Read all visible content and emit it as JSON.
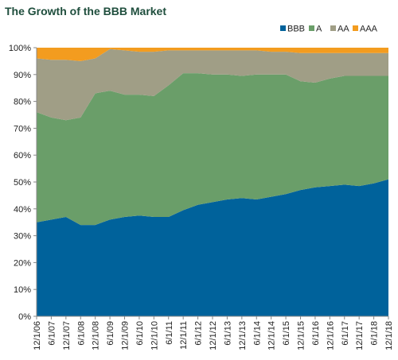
{
  "chart_data": {
    "type": "area",
    "stacked": true,
    "percent": true,
    "title": "The Growth of the BBB Market",
    "xlabel": "",
    "ylabel": "",
    "ylim": [
      0,
      100
    ],
    "y_ticks": [
      "0%",
      "10%",
      "20%",
      "30%",
      "40%",
      "50%",
      "60%",
      "70%",
      "80%",
      "90%",
      "100%"
    ],
    "legend_position": "top-right",
    "grid": false,
    "x_ticks": [
      "12/1/06",
      "6/1/07",
      "12/1/07",
      "6/1/08",
      "12/1/08",
      "6/1/09",
      "12/1/09",
      "6/1/10",
      "12/1/10",
      "6/1/11",
      "12/1/11",
      "6/1/12",
      "12/1/12",
      "6/1/13",
      "12/1/13",
      "6/1/14",
      "12/1/14",
      "6/1/15",
      "12/1/15",
      "6/1/16",
      "12/1/16",
      "6/1/17",
      "12/1/17",
      "6/1/18",
      "12/1/18"
    ],
    "series": [
      {
        "name": "BBB",
        "color": "#00629b",
        "values": [
          35,
          36,
          37,
          34,
          34,
          36,
          37,
          37.5,
          37,
          37,
          39.5,
          41.5,
          42.5,
          43.5,
          44,
          43.5,
          44.5,
          45.5,
          47,
          48,
          48.5,
          49,
          48.5,
          49.5,
          51
        ]
      },
      {
        "name": "A",
        "color": "#6a9e69",
        "values": [
          41,
          38,
          36,
          40,
          49,
          48,
          45.5,
          45,
          45,
          49,
          51,
          49,
          47.5,
          46.5,
          45.5,
          46.5,
          45.5,
          44.5,
          40.5,
          39,
          40,
          40.5,
          41,
          40,
          38.5
        ]
      },
      {
        "name": "AA",
        "color": "#a09e86",
        "values": [
          20,
          21.5,
          22.5,
          21,
          13,
          15.5,
          16.5,
          16,
          16.5,
          13,
          8.5,
          8.5,
          9,
          9,
          9.5,
          9,
          8.5,
          8.5,
          10.5,
          11,
          9.5,
          8.5,
          8.5,
          8.5,
          8.5
        ]
      },
      {
        "name": "AAA",
        "color": "#f39c1f",
        "values": [
          4,
          4.5,
          4.5,
          5,
          4,
          0.5,
          1,
          1.5,
          1.5,
          1,
          1,
          1,
          1,
          1,
          1,
          1,
          1.5,
          1.5,
          2,
          2,
          2,
          2,
          2,
          2,
          2
        ]
      }
    ]
  }
}
